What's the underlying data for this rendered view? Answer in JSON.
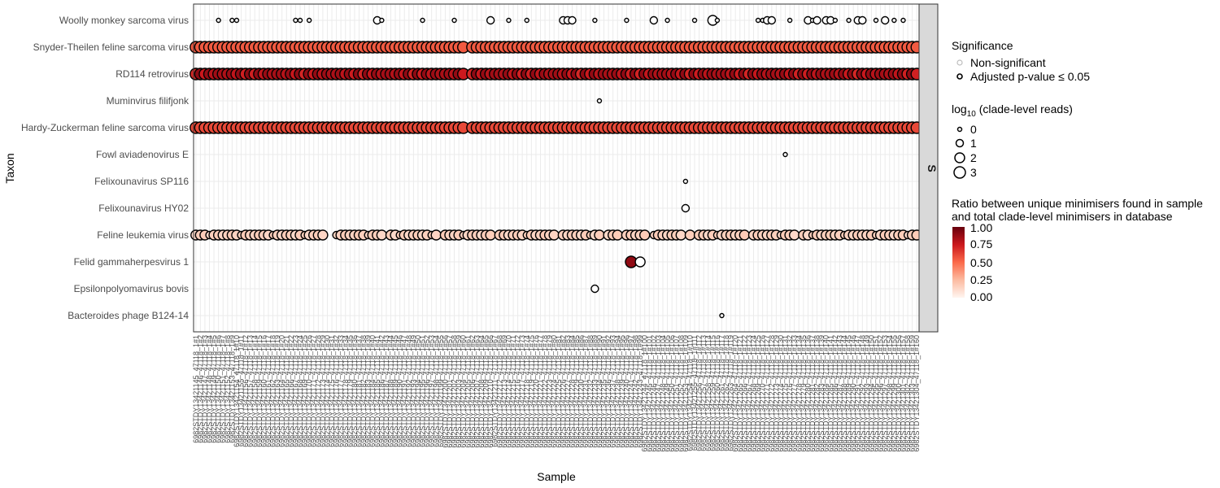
{
  "chart_data": {
    "type": "scatter",
    "xlabel": "Sample",
    "ylabel": "Taxon",
    "facet_label": "S",
    "taxa": [
      "Woolly monkey sarcoma virus",
      "Snyder-Theilen feline sarcoma virus",
      "RD114 retrovirus",
      "Muminvirus filifjonk",
      "Hardy-Zuckerman feline sarcoma virus",
      "Fowl aviadenovirus E",
      "Felixounavirus SP116",
      "Felixounavirus HY02",
      "Feline leukemia virus",
      "Felid gammaherpesvirus 1",
      "Epsilonpolyomavirus bovis",
      "Bacteroides phage B124-14"
    ],
    "samples": [
      "6982STDY13421145_47118_1#1",
      "6982STDY13421146_47118_1#2",
      "6982STDY13421147_47118_1#3",
      "6982STDY13421148_47118_1#4",
      "6982STDY13421149_47118_1#5",
      "6982STDY13421150_47118_1#6",
      "6982STDY13421151_47118_1#7",
      "6982STDY13421152_47118_1#8",
      "6982STDY13421153_47118_1#9",
      "6982STDY13421154_47118_1#10",
      "6982STDY13421155_47118_1#11",
      "6982STDY13421156_47118_1#12",
      "6982STDY13421157_47118_1#13",
      "6982STDY13421158_47118_1#14",
      "6982STDY13421159_47118_1#15",
      "6982STDY13421160_47118_1#16",
      "6982STDY13421161_47118_1#17",
      "6982STDY13421162_47118_1#18",
      "6982STDY13421163_47118_1#19",
      "6982STDY13421164_47118_1#20",
      "6982STDY13421165_47118_1#21",
      "6982STDY13421166_47118_1#22",
      "6982STDY13421167_47118_1#23",
      "6982STDY13421168_47118_1#24",
      "6982STDY13421169_47118_1#25",
      "6982STDY13421170_47118_1#26",
      "6982STDY13421171_47118_1#27",
      "6982STDY13421172_47118_1#28",
      "6982STDY13421173_47118_1#29",
      "6982STDY13421174_47118_1#30",
      "6982STDY13421175_47118_1#31",
      "6982STDY13421176_47118_1#32",
      "6982STDY13421177_47118_1#33",
      "6982STDY13421178_47118_1#34",
      "6982STDY13421179_47118_1#35",
      "6982STDY13421180_47118_1#36",
      "6982STDY13421181_47118_1#37",
      "6982STDY13421182_47118_1#38",
      "6982STDY13421183_47118_1#39",
      "6982STDY13421184_47118_1#40",
      "6982STDY13421185_47118_1#41",
      "6982STDY13421186_47118_1#42",
      "6982STDY13421187_47118_1#43",
      "6982STDY13421188_47118_1#44",
      "6982STDY13421189_47118_1#45",
      "6982STDY13421190_47118_1#46",
      "6982STDY13421191_47118_1#47",
      "6982STDY13421192_47118_1#48",
      "6982STDY13421193_47118_1#49",
      "6982STDY13421194_47118_1#50",
      "6982STDY13421195_47118_1#51",
      "6982STDY13421196_47118_1#52",
      "6982STDY13421197_47118_1#53",
      "6982STDY13421198_47118_1#54",
      "6982STDY13421199_47118_1#55",
      "6982STDY13421200_47118_1#56",
      "6982STDY13421201_47118_1#57",
      "6982STDY13421202_47118_1#58",
      "6982STDY13421203_47118_1#59",
      "6982STDY13421204_47118_1#60",
      "6982STDY13421205_47118_1#61",
      "6982STDY13421206_47118_1#62",
      "6982STDY13421207_47118_1#63",
      "6982STDY13421208_47118_1#64",
      "6982STDY13421209_47118_1#65",
      "6982STDY13421210_47118_1#66",
      "6982STDY13421211_47118_1#67",
      "6982STDY13421212_47118_1#68",
      "6982STDY13421213_47118_1#69",
      "6982STDY13421214_47118_1#70",
      "6982STDY13421215_47118_1#71",
      "6982STDY13421216_47118_1#72",
      "6982STDY13421217_47118_1#73",
      "6982STDY13421218_47118_1#74",
      "6982STDY13421219_47118_1#75",
      "6982STDY13421220_47118_1#76",
      "6982STDY13421221_47118_1#77",
      "6982STDY13421222_47118_1#78",
      "6982STDY13421223_47118_1#79",
      "6982STDY13421224_47118_1#80",
      "6982STDY13421225_47118_1#81",
      "6982STDY13421226_47118_1#82",
      "6982STDY13421227_47118_1#83",
      "6982STDY13421228_47118_1#84",
      "6982STDY13421229_47118_1#85",
      "6982STDY13421230_47118_1#86",
      "6982STDY13421231_47118_1#87",
      "6982STDY13421232_47118_1#88",
      "6982STDY13421233_47118_1#89",
      "6982STDY13421234_47118_1#90",
      "6982STDY13421235_47118_1#91",
      "6982STDY13421236_47118_1#92",
      "6982STDY13421237_47118_1#93",
      "6982STDY13421238_47118_1#94",
      "6982STDY13421239_47118_1#95",
      "6982STDY13421240_47118_1#96",
      "6982STDY13421241_47118_1#97",
      "6982STDY13421242_47118_1#98",
      "6982STDY13421243_47118_1#99",
      "6982STDY13421244_47118_1#100",
      "6982STDY13421245_47118_1#101",
      "6982STDY13421246_47118_1#102",
      "6982STDY13421247_47118_1#103",
      "6982STDY13421248_47118_1#104",
      "6982STDY13421249_47118_1#105",
      "6982STDY13421250_47118_1#106",
      "6982STDY13421251_47118_1#107",
      "6982STDY13421252_47118_1#108",
      "6982STDY13421253_47118_1#109",
      "6982STDY13421254_47118_1#110",
      "6982STDY13421255_47118_1#111",
      "6982STDY13421256_47118_1#112",
      "6982STDY13421257_47118_1#113",
      "6982STDY13421258_47118_1#114",
      "6982STDY13421259_47118_1#115",
      "6982STDY13421260_47118_1#116",
      "6982STDY13421261_47118_1#117",
      "6982STDY13421262_47118_1#118",
      "6982STDY13421263_47118_1#119",
      "6982STDY13421264_47118_1#120",
      "6982STDY13421265_47118_1#121",
      "6982STDY13421266_47118_1#122",
      "6982STDY13421267_47118_1#123",
      "6982STDY13421268_47118_1#124",
      "6982STDY13421269_47118_1#125",
      "6982STDY13421270_47118_1#126",
      "6982STDY13421271_47118_1#127",
      "6982STDY13421272_47118_1#128",
      "6982STDY13421273_47118_1#129",
      "6982STDY13421274_47118_1#130",
      "6982STDY13421275_47118_1#131",
      "6982STDY13421276_47118_1#132",
      "6982STDY13421277_47118_1#133",
      "6982STDY13421278_47118_1#134",
      "6982STDY13421279_47118_1#135",
      "6982STDY13421280_47118_1#136",
      "6982STDY13421281_47118_1#137",
      "6982STDY13421282_47118_1#138",
      "6982STDY13421283_47118_1#139",
      "6982STDY13421284_47118_1#140",
      "6982STDY13421285_47118_1#141",
      "6982STDY13421286_47118_1#142",
      "6982STDY13421287_47118_1#143",
      "6982STDY13421288_47118_1#144",
      "6982STDY13421289_47118_1#145",
      "6982STDY13421290_47118_1#146",
      "6982STDY13421291_47118_1#147",
      "6982STDY13421292_47118_1#148",
      "6982STDY13421293_47118_1#149",
      "6982STDY13421294_47118_1#150",
      "6982STDY13421295_47118_1#151",
      "6982STDY13421296_47118_1#152",
      "6982STDY13421297_47118_1#153",
      "6982STDY13421298_47118_1#154",
      "6982STDY13421299_47118_1#155",
      "6982STDY13421300_47118_1#156",
      "6982STDY13421301_47118_1#157",
      "6982STDY13421302_47118_1#158",
      "6982STDY13421303_47118_1#159",
      "6982STDY13421304_47118_1#160"
    ],
    "row_fill": {
      "Snyder-Theilen feline sarcoma virus": "#ef6f53",
      "RD114 retrovirus": "#dc2a24",
      "Hardy-Zuckerman feline sarcoma virus": "#ef6448",
      "Feline leukemia virus": "#fcd2c2",
      "Felid gammaherpesvirus 1": "#e5392b"
    },
    "points_note_none": "",
    "gap_columns": {
      "Snyder-Theilen feline sarcoma virus": [
        60
      ],
      "RD114 retrovirus": [
        60
      ],
      "Hardy-Zuckerman feline sarcoma virus": [
        60
      ]
    },
    "sparse_points": [
      {
        "taxon": "Woolly monkey sarcoma virus",
        "sample_index": 5,
        "log10_reads": 0,
        "ratio": 0.0
      },
      {
        "taxon": "Woolly monkey sarcoma virus",
        "sample_index": 8,
        "log10_reads": 0,
        "ratio": 0.0
      },
      {
        "taxon": "Woolly monkey sarcoma virus",
        "sample_index": 9,
        "log10_reads": 0,
        "ratio": 0.0
      },
      {
        "taxon": "Woolly monkey sarcoma virus",
        "sample_index": 22,
        "log10_reads": 0,
        "ratio": 0.0
      },
      {
        "taxon": "Woolly monkey sarcoma virus",
        "sample_index": 23,
        "log10_reads": 0,
        "ratio": 0.0
      },
      {
        "taxon": "Woolly monkey sarcoma virus",
        "sample_index": 25,
        "log10_reads": 0,
        "ratio": 0.0
      },
      {
        "taxon": "Woolly monkey sarcoma virus",
        "sample_index": 40,
        "log10_reads": 1,
        "ratio": 0.0
      },
      {
        "taxon": "Woolly monkey sarcoma virus",
        "sample_index": 41,
        "log10_reads": 0,
        "ratio": 0.0
      },
      {
        "taxon": "Woolly monkey sarcoma virus",
        "sample_index": 50,
        "log10_reads": 0,
        "ratio": 0.0
      },
      {
        "taxon": "Woolly monkey sarcoma virus",
        "sample_index": 57,
        "log10_reads": 0,
        "ratio": 0.0
      },
      {
        "taxon": "Woolly monkey sarcoma virus",
        "sample_index": 65,
        "log10_reads": 1,
        "ratio": 0.0
      },
      {
        "taxon": "Woolly monkey sarcoma virus",
        "sample_index": 69,
        "log10_reads": 0,
        "ratio": 0.0
      },
      {
        "taxon": "Woolly monkey sarcoma virus",
        "sample_index": 73,
        "log10_reads": 0,
        "ratio": 0.0
      },
      {
        "taxon": "Woolly monkey sarcoma virus",
        "sample_index": 81,
        "log10_reads": 1,
        "ratio": 0.0
      },
      {
        "taxon": "Woolly monkey sarcoma virus",
        "sample_index": 82,
        "log10_reads": 1,
        "ratio": 0.0
      },
      {
        "taxon": "Woolly monkey sarcoma virus",
        "sample_index": 83,
        "log10_reads": 1,
        "ratio": 0.0
      },
      {
        "taxon": "Woolly monkey sarcoma virus",
        "sample_index": 88,
        "log10_reads": 0,
        "ratio": 0.0
      },
      {
        "taxon": "Woolly monkey sarcoma virus",
        "sample_index": 95,
        "log10_reads": 0,
        "ratio": 0.0
      },
      {
        "taxon": "Woolly monkey sarcoma virus",
        "sample_index": 101,
        "log10_reads": 1,
        "ratio": 0.0
      },
      {
        "taxon": "Woolly monkey sarcoma virus",
        "sample_index": 104,
        "log10_reads": 0,
        "ratio": 0.0
      },
      {
        "taxon": "Woolly monkey sarcoma virus",
        "sample_index": 110,
        "log10_reads": 0,
        "ratio": 0.0
      },
      {
        "taxon": "Woolly monkey sarcoma virus",
        "sample_index": 114,
        "log10_reads": 2,
        "ratio": 0.0
      },
      {
        "taxon": "Woolly monkey sarcoma virus",
        "sample_index": 115,
        "log10_reads": 0,
        "ratio": 0.0
      },
      {
        "taxon": "Woolly monkey sarcoma virus",
        "sample_index": 124,
        "log10_reads": 0,
        "ratio": 0.0
      },
      {
        "taxon": "Woolly monkey sarcoma virus",
        "sample_index": 125,
        "log10_reads": 0,
        "ratio": 0.0
      },
      {
        "taxon": "Woolly monkey sarcoma virus",
        "sample_index": 126,
        "log10_reads": 1,
        "ratio": 0.0
      },
      {
        "taxon": "Woolly monkey sarcoma virus",
        "sample_index": 127,
        "log10_reads": 1,
        "ratio": 0.0
      },
      {
        "taxon": "Woolly monkey sarcoma virus",
        "sample_index": 131,
        "log10_reads": 0,
        "ratio": 0.0
      },
      {
        "taxon": "Woolly monkey sarcoma virus",
        "sample_index": 135,
        "log10_reads": 1,
        "ratio": 0.0
      },
      {
        "taxon": "Woolly monkey sarcoma virus",
        "sample_index": 136,
        "log10_reads": 0,
        "ratio": 0.0
      },
      {
        "taxon": "Woolly monkey sarcoma virus",
        "sample_index": 137,
        "log10_reads": 1,
        "ratio": 0.0
      },
      {
        "taxon": "Woolly monkey sarcoma virus",
        "sample_index": 139,
        "log10_reads": 1,
        "ratio": 0.0
      },
      {
        "taxon": "Woolly monkey sarcoma virus",
        "sample_index": 140,
        "log10_reads": 1,
        "ratio": 0.0
      },
      {
        "taxon": "Woolly monkey sarcoma virus",
        "sample_index": 141,
        "log10_reads": 0,
        "ratio": 0.0
      },
      {
        "taxon": "Woolly monkey sarcoma virus",
        "sample_index": 144,
        "log10_reads": 0,
        "ratio": 0.0
      },
      {
        "taxon": "Woolly monkey sarcoma virus",
        "sample_index": 146,
        "log10_reads": 1,
        "ratio": 0.0
      },
      {
        "taxon": "Woolly monkey sarcoma virus",
        "sample_index": 147,
        "log10_reads": 1,
        "ratio": 0.0
      },
      {
        "taxon": "Woolly monkey sarcoma virus",
        "sample_index": 150,
        "log10_reads": 0,
        "ratio": 0.0
      },
      {
        "taxon": "Woolly monkey sarcoma virus",
        "sample_index": 152,
        "log10_reads": 1,
        "ratio": 0.0
      },
      {
        "taxon": "Woolly monkey sarcoma virus",
        "sample_index": 154,
        "log10_reads": 0,
        "ratio": 0.0
      },
      {
        "taxon": "Woolly monkey sarcoma virus",
        "sample_index": 156,
        "log10_reads": 0,
        "ratio": 0.0
      },
      {
        "taxon": "Muminvirus filifjonk",
        "sample_index": 89,
        "log10_reads": 0,
        "ratio": 0.0
      },
      {
        "taxon": "Fowl aviadenovirus E",
        "sample_index": 130,
        "log10_reads": 0,
        "ratio": 0.0
      },
      {
        "taxon": "Felixounavirus SP116",
        "sample_index": 108,
        "log10_reads": 0,
        "ratio": 0.0
      },
      {
        "taxon": "Felixounavirus HY02",
        "sample_index": 108,
        "log10_reads": 1,
        "ratio": 0.0
      },
      {
        "taxon": "Felid gammaherpesvirus 1",
        "sample_index": 96,
        "log10_reads": 3,
        "ratio": 0.9
      },
      {
        "taxon": "Felid gammaherpesvirus 1",
        "sample_index": 98,
        "log10_reads": 2,
        "ratio": 0.0
      },
      {
        "taxon": "Epsilonpolyomavirus bovis",
        "sample_index": 88,
        "log10_reads": 1,
        "ratio": 0.0
      },
      {
        "taxon": "Bacteroides phage B124-14",
        "sample_index": 116,
        "log10_reads": 0,
        "ratio": 0.0
      }
    ],
    "dense_rows": {
      "Snyder-Theilen feline sarcoma virus": {
        "log10_reads": 3,
        "ratio": 0.55
      },
      "RD114 retrovirus": {
        "log10_reads": 3,
        "ratio": 0.8
      },
      "Hardy-Zuckerman feline sarcoma virus": {
        "log10_reads": 3,
        "ratio": 0.6
      },
      "Feline leukemia virus": {
        "log10_reads": 2,
        "ratio": 0.15
      }
    },
    "legend": {
      "significance_title": "Significance",
      "significance_items": [
        "Non-significant",
        "Adjusted p-value ≤ 0.05"
      ],
      "size_title_prefix": "log",
      "size_title_sub": "10",
      "size_title_suffix": " (clade-level reads)",
      "size_items": [
        "0",
        "1",
        "2",
        "3"
      ],
      "color_title_line1": "Ratio between unique minimisers found in sample",
      "color_title_line2": "and total clade-level minimisers in database",
      "color_ticks": [
        "1.00",
        "0.75",
        "0.50",
        "0.25",
        "0.00"
      ],
      "color_low": "#fff5f0",
      "color_high": "#67000d"
    },
    "grid": true
  }
}
